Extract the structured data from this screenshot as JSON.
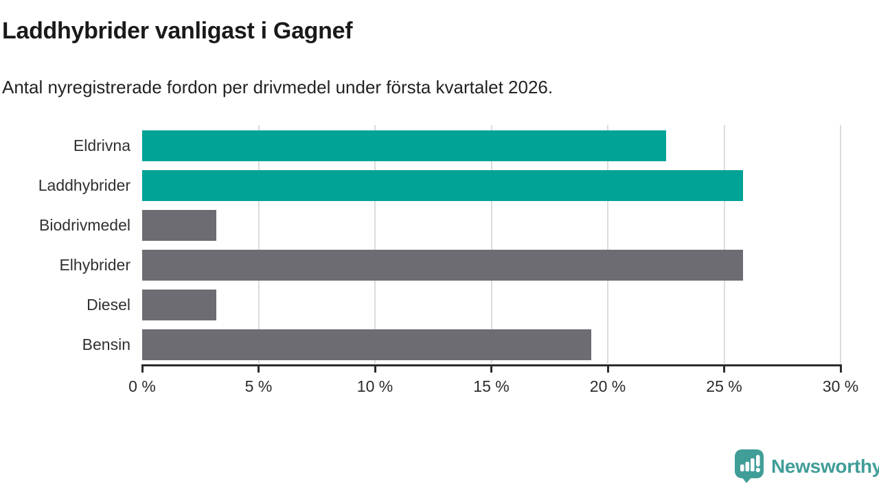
{
  "header": {
    "title": "Laddhybrider vanligast i Gagnef",
    "subtitle": "Antal nyregistrerade fordon per drivmedel under första kvartalet 2026."
  },
  "colors": {
    "highlight": "#00a396",
    "default": "#6c6c72",
    "grid": "#dcdcdc",
    "axis": "#2b2b2b",
    "label_text": "#303030",
    "title_text": "#1a1a1a",
    "brand_teal": "#409d98"
  },
  "chart_data": {
    "type": "bar",
    "orientation": "horizontal",
    "title": "Laddhybrider vanligast i Gagnef",
    "subtitle": "Antal nyregistrerade fordon per drivmedel under första kvartalet 2026.",
    "categories": [
      "Eldrivna",
      "Laddhybrider",
      "Biodrivmedel",
      "Elhybrider",
      "Diesel",
      "Bensin"
    ],
    "values": [
      22.5,
      25.8,
      3.2,
      25.8,
      3.2,
      19.3
    ],
    "unit": "%",
    "bar_colors": [
      "highlight",
      "highlight",
      "default",
      "default",
      "default",
      "default"
    ],
    "xlabel": "",
    "ylabel": "",
    "xlim": [
      0,
      30
    ],
    "x_ticks": [
      0,
      5,
      10,
      15,
      20,
      25,
      30
    ],
    "x_tick_labels": [
      "0 %",
      "5 %",
      "10 %",
      "15 %",
      "20 %",
      "25 %",
      "30 %"
    ],
    "grid": "vertical",
    "legend": "none"
  },
  "brand": {
    "name": "Newsworthy",
    "icon": "newsworthy-speech-bubble-chart-icon"
  }
}
